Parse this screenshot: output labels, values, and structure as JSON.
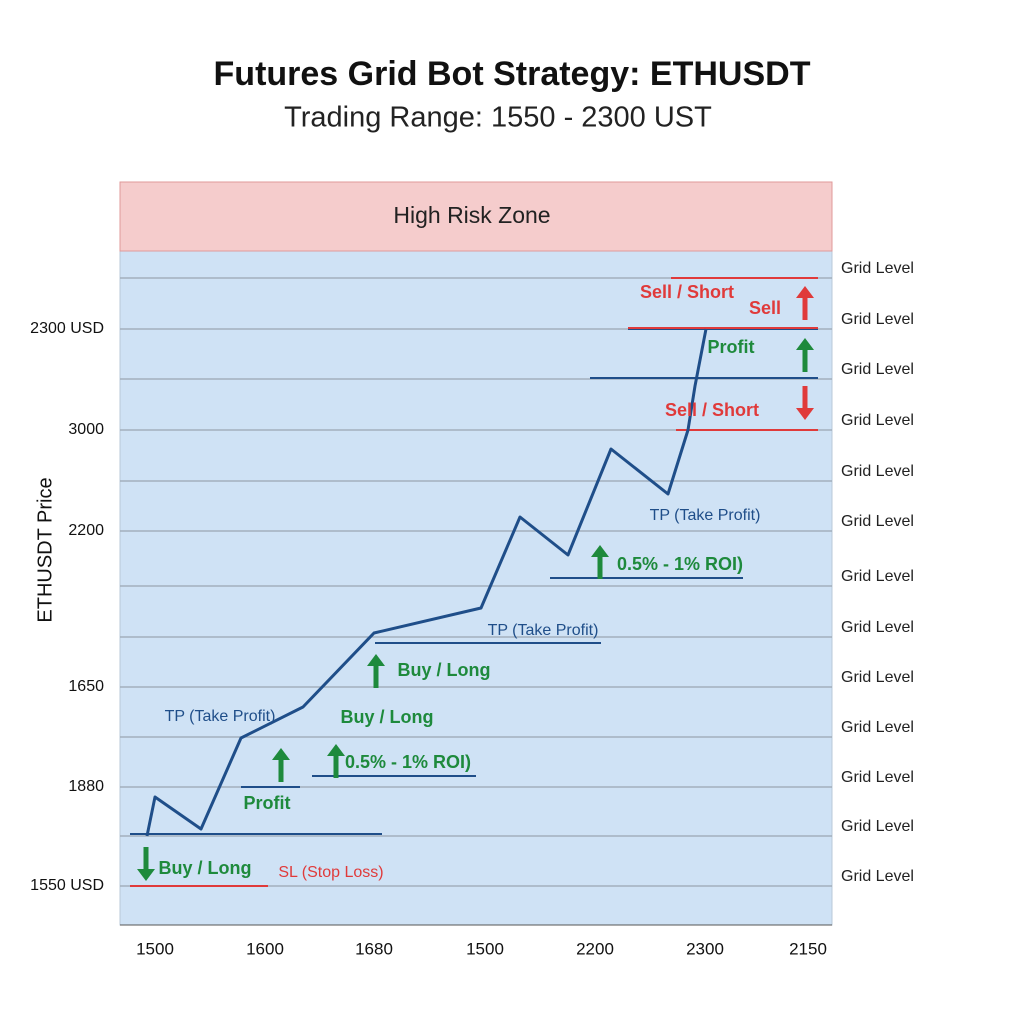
{
  "header": {
    "title": "Futures Grid Bot Strategy: ETHUSDT",
    "subtitle": "Trading Range: 1550 - 2300 UST"
  },
  "zone": "High Risk Zone",
  "y_axis_label": "ETHUSDT Price",
  "y_labels": [
    "2300 USD",
    "3000",
    "2200",
    "1650",
    "1880",
    "1550 USD"
  ],
  "x_labels": [
    "1500",
    "1600",
    "1680",
    "1500",
    "2200",
    "2300",
    "2150"
  ],
  "grid_levels": [
    "Grid Level",
    "Grid Level",
    "Grid Level",
    "Grid Level",
    "Grid Level",
    "Grid Level",
    "Grid Level",
    "Grid Level",
    "Grid Level",
    "Grid Level",
    "Grid Level",
    "Grid Level",
    "Grid Level"
  ],
  "annotations": [
    "Sell / Short",
    "Sell",
    "Profit",
    "Sell / Short",
    "TP (Take Profit)",
    "0.5% - 1% ROI)",
    "TP (Take Profit)",
    "Buy / Long",
    "TP (Take Profit)",
    "Buy / Long",
    "0.5% - 1% ROI)",
    "Profit",
    "Buy / Long",
    "SL (Stop Loss)"
  ]
}
